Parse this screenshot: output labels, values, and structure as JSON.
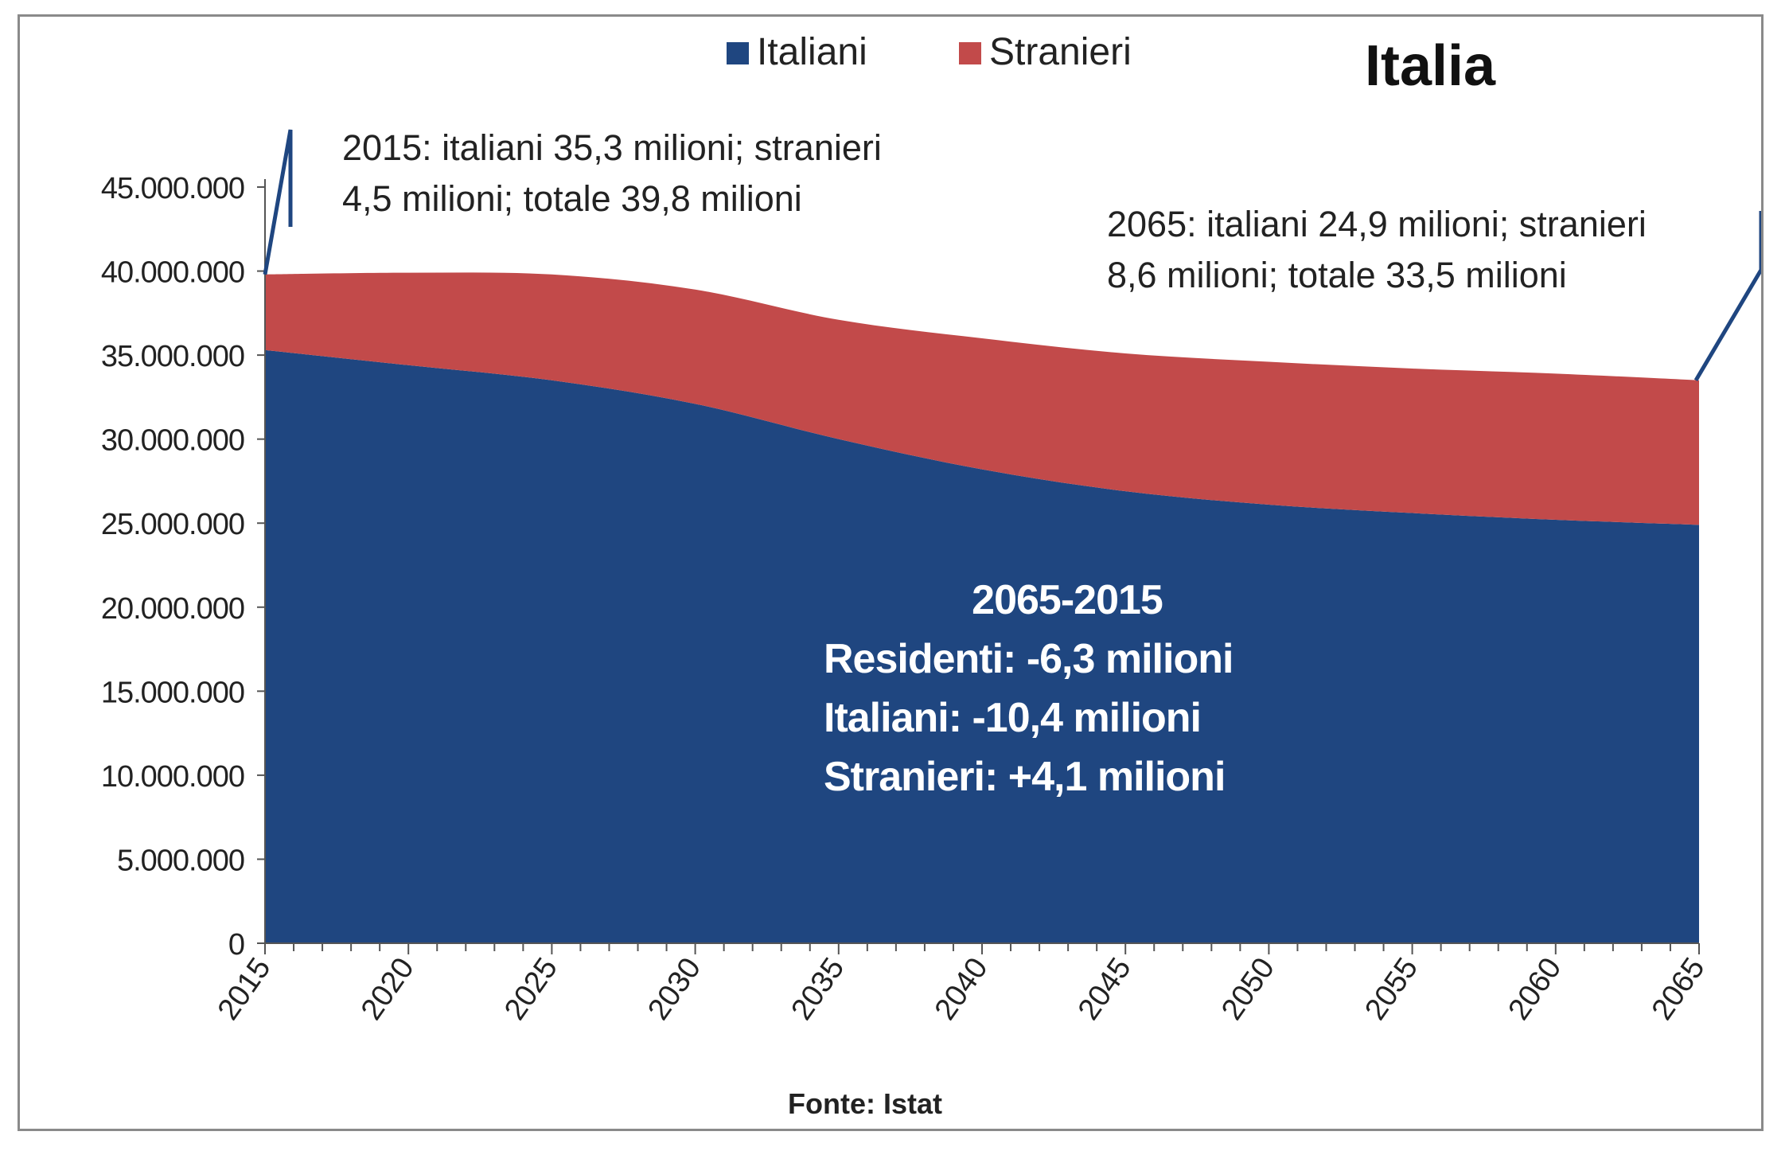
{
  "chart_data": {
    "type": "area",
    "stacked": true,
    "title": "Italia",
    "source_label": "Fonte: Istat",
    "x": [
      2015,
      2020,
      2025,
      2030,
      2035,
      2040,
      2045,
      2050,
      2055,
      2060,
      2065
    ],
    "series": [
      {
        "name": "Italiani",
        "color": "#1f4680",
        "values": [
          35300000,
          34400000,
          33500000,
          32100000,
          30000000,
          28200000,
          26900000,
          26100000,
          25600000,
          25200000,
          24900000
        ]
      },
      {
        "name": "Stranieri",
        "color": "#c24a4a",
        "values": [
          4500000,
          5500000,
          6300000,
          6800000,
          7100000,
          7800000,
          8200000,
          8500000,
          8600000,
          8700000,
          8600000
        ]
      }
    ],
    "ylim": [
      0,
      45000000
    ],
    "yticks": [
      0,
      5000000,
      10000000,
      15000000,
      20000000,
      25000000,
      30000000,
      35000000,
      40000000,
      45000000
    ],
    "ytick_labels": [
      "0",
      "5.000.000",
      "10.000.000",
      "15.000.000",
      "20.000.000",
      "25.000.000",
      "30.000.000",
      "35.000.000",
      "40.000.000",
      "45.000.000"
    ],
    "xtick_labels": [
      "2015",
      "2020",
      "2025",
      "2030",
      "2035",
      "2040",
      "2045",
      "2050",
      "2055",
      "2060",
      "2065"
    ],
    "legend": "top-center",
    "grid": false,
    "annotations": {
      "start": [
        "2015: italiani 35,3 milioni; stranieri",
        "4,5 milioni; totale 39,8 milioni"
      ],
      "end": [
        "2065: italiani 24,9 milioni; stranieri",
        "8,6 milioni; totale 33,5 milioni"
      ],
      "summary": [
        "2065-2015",
        "Residenti: -6,3 milioni",
        "Italiani: -10,4 milioni",
        "Stranieri: +4,1 milioni"
      ]
    }
  }
}
